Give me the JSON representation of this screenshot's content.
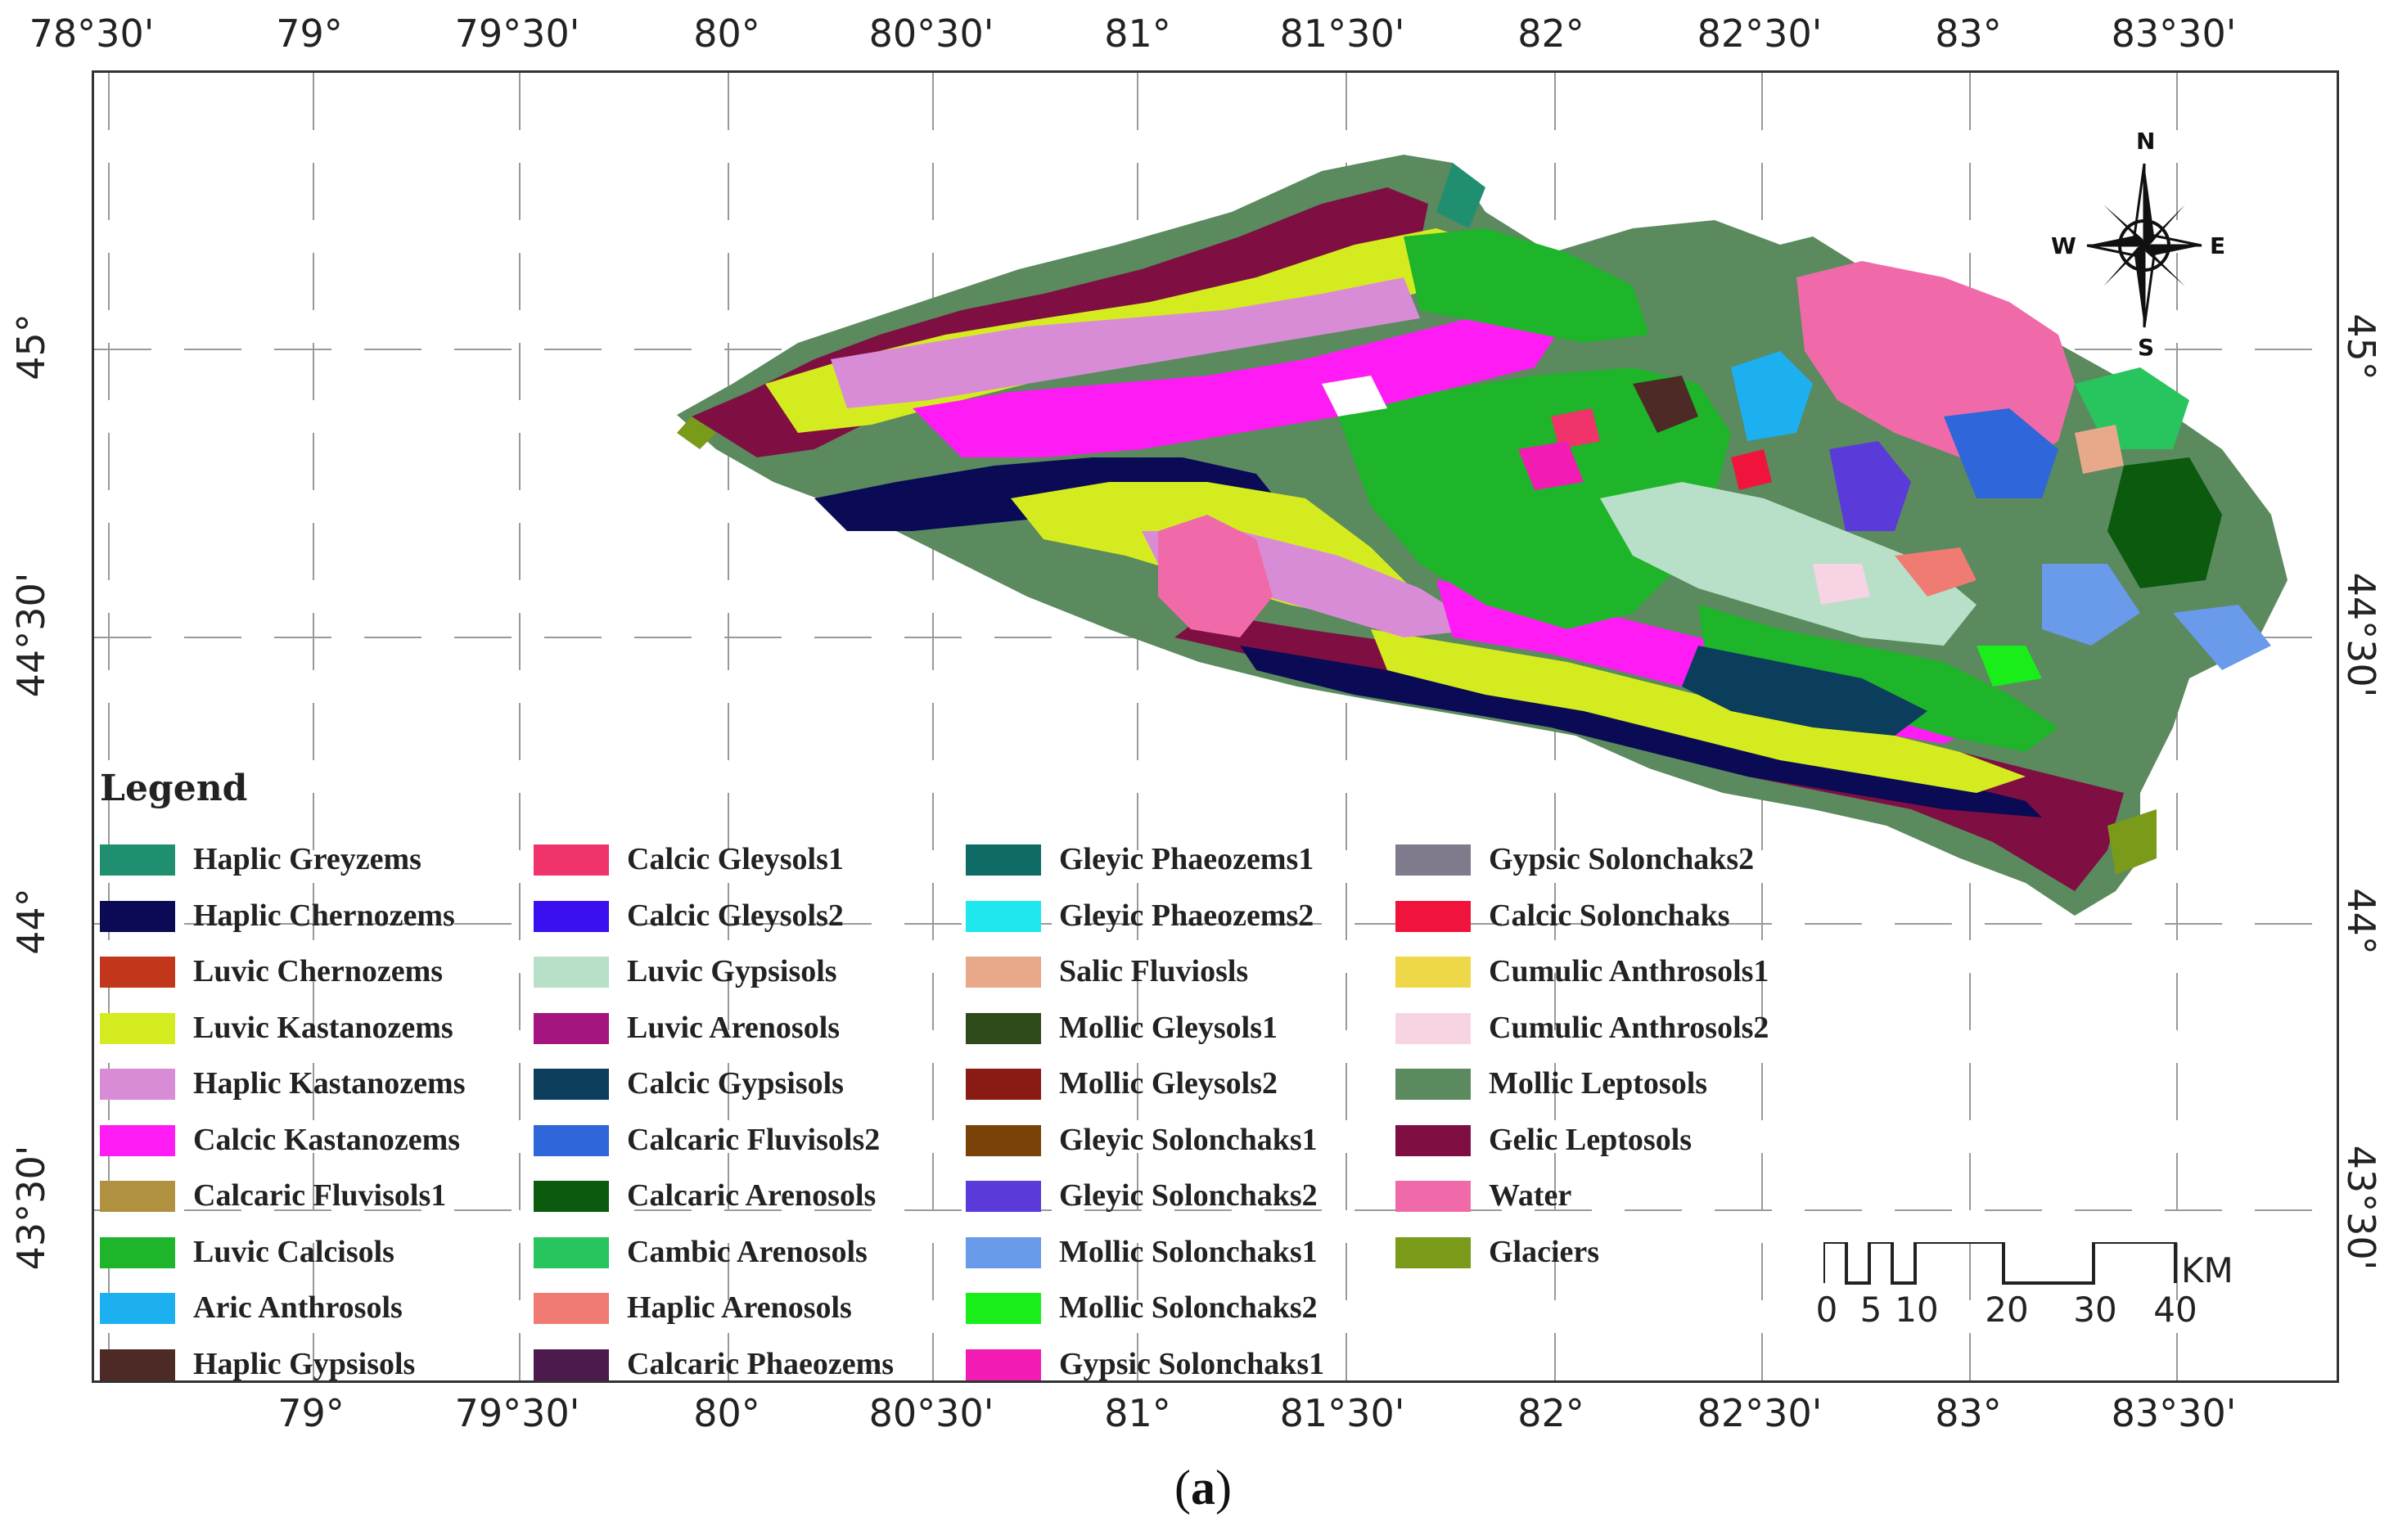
{
  "graticule": {
    "top_labels": [
      "78°30'",
      "79°",
      "79°30'",
      "80°",
      "80°30'",
      "81°",
      "81°30'",
      "82°",
      "82°30'",
      "83°",
      "83°30'"
    ],
    "bottom_labels": [
      "79°",
      "79°30'",
      "80°",
      "80°30'",
      "81°",
      "81°30'",
      "82°",
      "82°30'",
      "83°",
      "83°30'"
    ],
    "left_labels": [
      "45°",
      "44°30'",
      "44°",
      "43°30'"
    ],
    "right_labels": [
      "45°",
      "44°30'",
      "44°",
      "43°30'"
    ]
  },
  "compass": {
    "n": "N",
    "s": "S",
    "e": "E",
    "w": "W"
  },
  "legend": {
    "title": "Legend",
    "items": [
      {
        "label": "Haplic Greyzems",
        "color": "#1f8f6f"
      },
      {
        "label": "Haplic Chernozems",
        "color": "#0b0b55"
      },
      {
        "label": "Luvic Chernozems",
        "color": "#c2361b"
      },
      {
        "label": "Luvic Kastanozems",
        "color": "#d4ec1f"
      },
      {
        "label": "Haplic Kastanozems",
        "color": "#d98cd6"
      },
      {
        "label": "Calcic Kastanozems",
        "color": "#ff1cf4"
      },
      {
        "label": "Calcaric Fluvisols1",
        "color": "#b09140"
      },
      {
        "label": "Luvic Calcisols",
        "color": "#1eb52a"
      },
      {
        "label": "Aric Anthrosols",
        "color": "#1cb0f0"
      },
      {
        "label": "Haplic Gypsisols",
        "color": "#4d2a26"
      },
      {
        "label": "Calcic Gleysols1",
        "color": "#f0336b"
      },
      {
        "label": "Calcic Gleysols2",
        "color": "#3a0ff0"
      },
      {
        "label": "Luvic Gypsisols",
        "color": "#b8e0c8"
      },
      {
        "label": "Luvic Arenosols",
        "color": "#a5157f"
      },
      {
        "label": "Calcic Gypsisols",
        "color": "#0b3d5c"
      },
      {
        "label": "Calcaric Fluvisols2",
        "color": "#2f66d9"
      },
      {
        "label": "Calcaric Arenosols",
        "color": "#0b5a0e"
      },
      {
        "label": "Cambic Arenosols",
        "color": "#28c45e"
      },
      {
        "label": "Haplic Arenosols",
        "color": "#f07b72"
      },
      {
        "label": "Calcaric Phaeozems",
        "color": "#4d1a4d"
      },
      {
        "label": "Gleyic Phaeozems1",
        "color": "#0f6b66"
      },
      {
        "label": "Gleyic Phaeozems2",
        "color": "#1ee8ee"
      },
      {
        "label": "Salic Fluviosls",
        "color": "#e8a88a"
      },
      {
        "label": "Mollic Gleysols1",
        "color": "#2f4a1a"
      },
      {
        "label": "Mollic Gleysols2",
        "color": "#8a1a14"
      },
      {
        "label": "Gleyic Solonchaks1",
        "color": "#7a4208"
      },
      {
        "label": "Gleyic Solonchaks2",
        "color": "#5a3ad9"
      },
      {
        "label": "Mollic Solonchaks1",
        "color": "#6a9aea"
      },
      {
        "label": "Mollic Solonchaks2",
        "color": "#1aee1a"
      },
      {
        "label": "Gypsic Solonchaks1",
        "color": "#f21cb4"
      },
      {
        "label": "Gypsic Solonchaks2",
        "color": "#7f7a8c"
      },
      {
        "label": "Calcic Solonchaks",
        "color": "#f0143c"
      },
      {
        "label": "Cumulic Anthrosols1",
        "color": "#eed84a"
      },
      {
        "label": "Cumulic Anthrosols2",
        "color": "#f6d4e4"
      },
      {
        "label": "Mollic Leptosols",
        "color": "#5a8a5e"
      },
      {
        "label": "Gelic Leptosols",
        "color": "#7f0f42"
      },
      {
        "label": "Water",
        "color": "#f06aaa"
      },
      {
        "label": "Glaciers",
        "color": "#7a9a1a"
      }
    ]
  },
  "scale": {
    "ticks": [
      "0",
      "5",
      "10",
      "20",
      "30",
      "40"
    ],
    "unit": "KM"
  },
  "caption": {
    "open": "(",
    "letter": "a",
    "close": ")"
  }
}
